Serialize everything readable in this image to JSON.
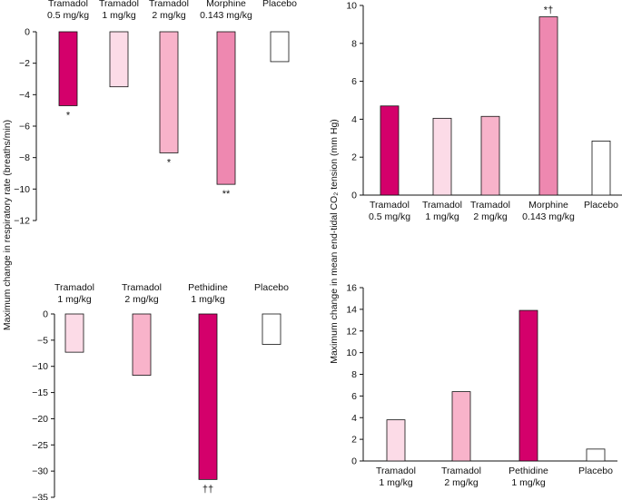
{
  "figure": {
    "ylabel_left": "Maximum change in respiratory rate (breaths/min)",
    "ylabel_right": "Maximum change in mean end-tidal CO₂ tension (mm Hg)"
  },
  "colors": {
    "tramadol_05": "#d4006b",
    "tramadol_1": "#fcdbe7",
    "tramadol_2": "#f8b3ca",
    "morphine": "#ee88b0",
    "pethidine": "#d4006b",
    "placebo": "#ffffff"
  },
  "chart_data": [
    {
      "id": "resp_rate_a",
      "type": "bar",
      "categories": [
        {
          "line1": "Tramadol",
          "line2": "0.5 mg/kg"
        },
        {
          "line1": "Tramadol",
          "line2": "1 mg/kg"
        },
        {
          "line1": "Tramadol",
          "line2": "2 mg/kg"
        },
        {
          "line1": "Morphine",
          "line2": "0.143 mg/kg"
        },
        {
          "line1": "Placebo",
          "line2": ""
        }
      ],
      "values": [
        -4.7,
        -3.5,
        -7.7,
        -9.7,
        -1.9
      ],
      "colors": [
        "tramadol_05",
        "tramadol_1",
        "tramadol_2",
        "morphine",
        "placebo"
      ],
      "annotations": [
        "*",
        "",
        "*",
        "**",
        ""
      ],
      "ylim": [
        -12,
        0
      ],
      "yticks": [
        0,
        -2,
        -4,
        -6,
        -8,
        -10,
        -12
      ],
      "labels_position": "top"
    },
    {
      "id": "co2_a",
      "type": "bar",
      "categories": [
        {
          "line1": "Tramadol",
          "line2": "0.5 mg/kg"
        },
        {
          "line1": "Tramadol",
          "line2": "1 mg/kg"
        },
        {
          "line1": "Tramadol",
          "line2": "2 mg/kg"
        },
        {
          "line1": "Morphine",
          "line2": "0.143 mg/kg"
        },
        {
          "line1": "Placebo",
          "line2": ""
        }
      ],
      "values": [
        4.7,
        4.05,
        4.15,
        9.4,
        2.85
      ],
      "colors": [
        "tramadol_05",
        "tramadol_1",
        "tramadol_2",
        "morphine",
        "placebo"
      ],
      "annotations": [
        "",
        "",
        "",
        "*†",
        ""
      ],
      "ylim": [
        0,
        10
      ],
      "yticks": [
        0,
        2,
        4,
        6,
        8,
        10
      ],
      "labels_position": "bottom"
    },
    {
      "id": "resp_rate_b",
      "type": "bar",
      "categories": [
        {
          "line1": "Tramadol",
          "line2": "1 mg/kg"
        },
        {
          "line1": "Tramadol",
          "line2": "2 mg/kg"
        },
        {
          "line1": "Pethidine",
          "line2": "1 mg/kg"
        },
        {
          "line1": "Placebo",
          "line2": ""
        }
      ],
      "values": [
        -7.3,
        -11.7,
        -31.6,
        -5.8
      ],
      "colors": [
        "tramadol_1",
        "tramadol_2",
        "pethidine",
        "placebo"
      ],
      "annotations": [
        "",
        "",
        "††",
        ""
      ],
      "ylim": [
        -35,
        0
      ],
      "yticks": [
        0,
        -5,
        -10,
        -15,
        -20,
        -25,
        -30,
        -35
      ],
      "labels_position": "top"
    },
    {
      "id": "co2_b",
      "type": "bar",
      "categories": [
        {
          "line1": "Tramadol",
          "line2": "1 mg/kg"
        },
        {
          "line1": "Tramadol",
          "line2": "2 mg/kg"
        },
        {
          "line1": "Pethidine",
          "line2": "1 mg/kg"
        },
        {
          "line1": "Placebo",
          "line2": ""
        }
      ],
      "values": [
        3.8,
        6.4,
        13.9,
        1.1
      ],
      "colors": [
        "tramadol_1",
        "tramadol_2",
        "pethidine",
        "placebo"
      ],
      "annotations": [
        "",
        "",
        "",
        ""
      ],
      "ylim": [
        0,
        16
      ],
      "yticks": [
        0,
        2,
        4,
        6,
        8,
        10,
        12,
        14,
        16
      ],
      "labels_position": "bottom"
    }
  ]
}
